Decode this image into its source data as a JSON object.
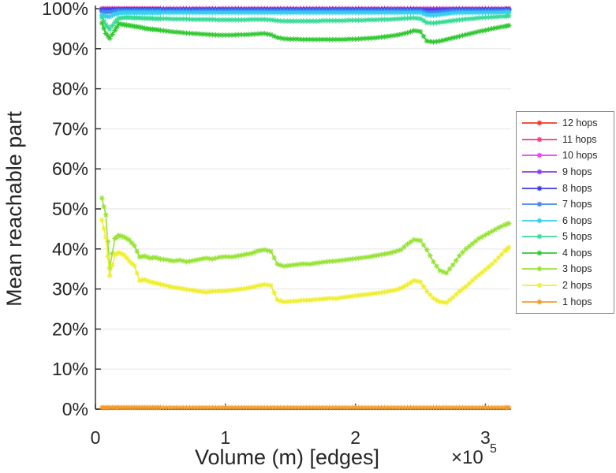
{
  "figure": {
    "background": "#ffffff",
    "axis_color": "#262626",
    "grid_color": "#ececec",
    "ylabel": "Mean reachable part",
    "xlabel": "Volume (m) [edges]",
    "x_exponent_base": "×10",
    "x_exponent_power": "5",
    "x_ticks": [
      {
        "v": 0,
        "label": "0"
      },
      {
        "v": 1,
        "label": "1"
      },
      {
        "v": 2,
        "label": "2"
      },
      {
        "v": 3,
        "label": "3"
      }
    ],
    "y_ticks": [
      {
        "v": 0,
        "label": "0%"
      },
      {
        "v": 10,
        "label": "10%"
      },
      {
        "v": 20,
        "label": "20%"
      },
      {
        "v": 30,
        "label": "30%"
      },
      {
        "v": 40,
        "label": "40%"
      },
      {
        "v": 50,
        "label": "50%"
      },
      {
        "v": 60,
        "label": "60%"
      },
      {
        "v": 70,
        "label": "70%"
      },
      {
        "v": 80,
        "label": "80%"
      },
      {
        "v": 90,
        "label": "90%"
      },
      {
        "v": 100,
        "label": "100%"
      }
    ]
  },
  "chart_data": {
    "type": "line",
    "title": "",
    "xlabel": "Volume (m) [edges]",
    "ylabel": "Mean reachable part",
    "x_unit": "edges, values in units of 1e5 (axis shows ×10^5)",
    "xlim": [
      0,
      3.2
    ],
    "ylim_percent": [
      0,
      100
    ],
    "grid": "horizontal gridlines only",
    "legend_position": "outside right",
    "marker": "asterisk",
    "x": [
      0.05,
      0.08,
      0.11,
      0.15,
      0.18,
      0.22,
      0.26,
      0.3,
      0.34,
      0.38,
      0.42,
      0.46,
      0.5,
      0.55,
      0.6,
      0.65,
      0.7,
      0.75,
      0.8,
      0.85,
      0.9,
      0.95,
      1.0,
      1.05,
      1.1,
      1.15,
      1.2,
      1.25,
      1.3,
      1.35,
      1.4,
      1.45,
      1.5,
      1.55,
      1.6,
      1.65,
      1.7,
      1.75,
      1.8,
      1.85,
      1.9,
      1.95,
      2.0,
      2.05,
      2.1,
      2.15,
      2.2,
      2.25,
      2.3,
      2.35,
      2.4,
      2.45,
      2.5,
      2.55,
      2.6,
      2.65,
      2.7,
      2.75,
      2.8,
      2.85,
      2.9,
      2.95,
      3.0,
      3.05,
      3.1,
      3.15,
      3.18
    ],
    "series": [
      {
        "name": "12 hops",
        "color": "#ee3a24",
        "values": [
          100,
          100,
          100,
          100,
          100,
          100,
          100,
          100,
          100,
          100,
          100,
          100,
          100,
          100,
          100,
          100,
          100,
          100,
          100,
          100,
          100,
          100,
          100,
          100,
          100,
          100,
          100,
          100,
          100,
          100,
          100,
          100,
          100,
          100,
          100,
          100,
          100,
          100,
          100,
          100,
          100,
          100,
          100,
          100,
          100,
          100,
          100,
          100,
          100,
          100,
          100,
          100,
          100,
          100,
          100,
          100,
          100,
          100,
          100,
          100,
          100,
          100,
          100,
          100,
          100,
          100,
          100
        ]
      },
      {
        "name": "11 hops",
        "color": "#ef3a87",
        "values": [
          99.95,
          99.95,
          99.95,
          99.95,
          99.95,
          99.95,
          99.95,
          99.95,
          99.95,
          99.95,
          99.95,
          99.95,
          99.95,
          99.95,
          99.95,
          99.95,
          99.95,
          99.95,
          99.95,
          99.95,
          99.95,
          99.95,
          99.95,
          99.95,
          99.95,
          99.95,
          99.95,
          99.95,
          99.95,
          99.95,
          99.95,
          99.95,
          99.95,
          99.95,
          99.95,
          99.95,
          99.95,
          99.95,
          99.95,
          99.95,
          99.95,
          99.95,
          99.95,
          99.95,
          99.95,
          99.95,
          99.95,
          99.95,
          99.95,
          99.95,
          99.95,
          99.95,
          99.95,
          99.95,
          99.95,
          99.95,
          99.95,
          99.95,
          99.95,
          99.95,
          99.95,
          99.95,
          99.95,
          99.95,
          99.95,
          99.95,
          99.95
        ]
      },
      {
        "name": "10 hops",
        "color": "#ed3bed",
        "values": [
          99.9,
          99.9,
          99.9,
          99.9,
          99.9,
          99.9,
          99.9,
          99.9,
          99.9,
          99.9,
          99.9,
          99.9,
          99.9,
          99.9,
          99.9,
          99.9,
          99.9,
          99.9,
          99.9,
          99.9,
          99.9,
          99.9,
          99.9,
          99.9,
          99.9,
          99.9,
          99.9,
          99.9,
          99.9,
          99.9,
          99.9,
          99.9,
          99.9,
          99.9,
          99.9,
          99.9,
          99.9,
          99.9,
          99.9,
          99.9,
          99.9,
          99.9,
          99.9,
          99.9,
          99.9,
          99.9,
          99.9,
          99.9,
          99.9,
          99.9,
          99.9,
          99.9,
          99.9,
          99.9,
          99.9,
          99.9,
          99.9,
          99.9,
          99.9,
          99.9,
          99.9,
          99.9,
          99.9,
          99.9,
          99.9,
          99.9,
          99.9
        ]
      },
      {
        "name": "9 hops",
        "color": "#8738ec",
        "values": [
          99.85,
          99.85,
          99.85,
          99.85,
          99.85,
          99.85,
          99.85,
          99.85,
          99.85,
          99.85,
          99.85,
          99.85,
          99.85,
          99.85,
          99.85,
          99.85,
          99.85,
          99.85,
          99.85,
          99.85,
          99.85,
          99.85,
          99.85,
          99.85,
          99.85,
          99.85,
          99.85,
          99.85,
          99.85,
          99.85,
          99.85,
          99.85,
          99.85,
          99.85,
          99.85,
          99.85,
          99.85,
          99.85,
          99.85,
          99.85,
          99.85,
          99.85,
          99.85,
          99.85,
          99.85,
          99.85,
          99.85,
          99.85,
          99.85,
          99.85,
          99.85,
          99.85,
          99.85,
          99.85,
          99.85,
          99.85,
          99.85,
          99.85,
          99.85,
          99.85,
          99.85,
          99.85,
          99.85,
          99.85,
          99.85,
          99.85,
          99.85
        ]
      },
      {
        "name": "8 hops",
        "color": "#3a3aec",
        "values": [
          99.6,
          99.55,
          99.6,
          99.7,
          99.75,
          99.75,
          99.75,
          99.75,
          99.75,
          99.75,
          99.75,
          99.75,
          99.75,
          99.75,
          99.75,
          99.75,
          99.75,
          99.75,
          99.75,
          99.75,
          99.75,
          99.75,
          99.75,
          99.75,
          99.75,
          99.75,
          99.75,
          99.75,
          99.75,
          99.75,
          99.75,
          99.75,
          99.75,
          99.75,
          99.75,
          99.75,
          99.75,
          99.75,
          99.75,
          99.75,
          99.75,
          99.75,
          99.75,
          99.75,
          99.75,
          99.75,
          99.75,
          99.75,
          99.75,
          99.75,
          99.75,
          99.75,
          99.75,
          99.5,
          99.5,
          99.55,
          99.65,
          99.75,
          99.75,
          99.75,
          99.75,
          99.75,
          99.75,
          99.75,
          99.75,
          99.75,
          99.75
        ]
      },
      {
        "name": "7 hops",
        "color": "#3e86f0",
        "values": [
          99.25,
          99.15,
          99.2,
          99.4,
          99.5,
          99.5,
          99.5,
          99.5,
          99.5,
          99.5,
          99.5,
          99.5,
          99.5,
          99.5,
          99.5,
          99.5,
          99.5,
          99.5,
          99.5,
          99.5,
          99.5,
          99.5,
          99.5,
          99.5,
          99.5,
          99.5,
          99.5,
          99.5,
          99.5,
          99.5,
          99.5,
          99.5,
          99.5,
          99.5,
          99.5,
          99.5,
          99.5,
          99.5,
          99.5,
          99.5,
          99.5,
          99.5,
          99.5,
          99.5,
          99.5,
          99.5,
          99.5,
          99.5,
          99.5,
          99.5,
          99.5,
          99.5,
          99.5,
          99.1,
          99.1,
          99.2,
          99.35,
          99.5,
          99.5,
          99.5,
          99.5,
          99.5,
          99.5,
          99.5,
          99.5,
          99.5,
          99.5
        ]
      },
      {
        "name": "6 hops",
        "color": "#33cfee",
        "values": [
          98.4,
          98.1,
          98.0,
          98.6,
          98.9,
          99.0,
          99.0,
          99.0,
          99.0,
          99.0,
          99.0,
          99.0,
          99.0,
          99.0,
          99.0,
          99.0,
          99.0,
          99.0,
          99.0,
          99.0,
          99.0,
          99.0,
          99.0,
          99.0,
          99.0,
          99.0,
          99.0,
          99.0,
          99.0,
          99.0,
          99.0,
          99.0,
          99.0,
          99.0,
          99.0,
          99.0,
          99.0,
          99.0,
          99.0,
          99.0,
          99.0,
          99.0,
          99.0,
          99.0,
          99.0,
          99.0,
          99.0,
          99.0,
          99.0,
          99.0,
          99.0,
          99.0,
          99.0,
          98.4,
          98.3,
          98.5,
          98.7,
          98.9,
          99.0,
          99.0,
          99.0,
          99.0,
          99.0,
          99.0,
          99.0,
          99.1,
          99.1
        ]
      },
      {
        "name": "5 hops",
        "color": "#36db95",
        "values": [
          97.8,
          96.0,
          94.9,
          96.6,
          97.6,
          97.8,
          97.8,
          97.7,
          97.7,
          97.6,
          97.6,
          97.5,
          97.5,
          97.5,
          97.4,
          97.4,
          97.4,
          97.3,
          97.3,
          97.3,
          97.3,
          97.2,
          97.2,
          97.2,
          97.2,
          97.2,
          97.3,
          97.3,
          97.3,
          97.2,
          97.0,
          96.9,
          96.9,
          96.9,
          96.9,
          96.9,
          96.9,
          97.0,
          97.0,
          97.0,
          97.0,
          97.1,
          97.1,
          97.1,
          97.2,
          97.2,
          97.3,
          97.3,
          97.4,
          97.5,
          97.6,
          97.7,
          97.5,
          96.5,
          96.4,
          96.6,
          96.8,
          97.0,
          97.2,
          97.4,
          97.5,
          97.7,
          97.8,
          97.9,
          98.0,
          98.1,
          98.2
        ]
      },
      {
        "name": "4 hops",
        "color": "#2fc92f",
        "values": [
          96.4,
          93.8,
          92.6,
          94.6,
          96.2,
          96.0,
          95.8,
          95.6,
          95.4,
          95.1,
          94.9,
          94.8,
          94.6,
          94.4,
          94.2,
          94.1,
          93.9,
          93.8,
          93.7,
          93.6,
          93.5,
          93.4,
          93.4,
          93.4,
          93.5,
          93.5,
          93.6,
          93.7,
          93.8,
          93.5,
          92.8,
          92.5,
          92.4,
          92.4,
          92.3,
          92.3,
          92.3,
          92.3,
          92.3,
          92.3,
          92.3,
          92.4,
          92.4,
          92.5,
          92.6,
          92.7,
          92.9,
          93.1,
          93.3,
          93.6,
          94.0,
          94.5,
          94.3,
          91.9,
          91.7,
          91.9,
          92.3,
          92.7,
          93.1,
          93.5,
          93.9,
          94.3,
          94.6,
          95.0,
          95.3,
          95.6,
          95.8
        ]
      },
      {
        "name": "3 hops",
        "color": "#97e335",
        "values": [
          52.7,
          48.5,
          35.2,
          42.6,
          43.4,
          43.0,
          42.2,
          40.8,
          38.0,
          38.2,
          37.7,
          37.9,
          37.5,
          37.3,
          37.0,
          37.2,
          36.8,
          37.1,
          37.4,
          37.7,
          37.5,
          37.9,
          38.1,
          38.0,
          38.3,
          38.6,
          38.9,
          39.5,
          39.8,
          39.4,
          36.2,
          35.7,
          35.9,
          36.1,
          36.3,
          36.2,
          36.5,
          36.7,
          36.9,
          37.0,
          37.2,
          37.4,
          37.6,
          37.8,
          38.0,
          38.3,
          38.6,
          38.9,
          39.3,
          39.8,
          41.2,
          42.3,
          42.1,
          39.8,
          36.8,
          34.6,
          34.0,
          36.0,
          38.3,
          40.0,
          41.3,
          42.6,
          43.5,
          44.4,
          45.3,
          46.0,
          46.4
        ]
      },
      {
        "name": "2 hops",
        "color": "#efee33",
        "values": [
          47.2,
          43.0,
          33.3,
          38.6,
          39.1,
          38.5,
          37.0,
          35.8,
          32.1,
          32.3,
          31.8,
          31.5,
          31.2,
          30.8,
          30.4,
          30.2,
          29.9,
          29.7,
          29.4,
          29.2,
          29.4,
          29.5,
          29.5,
          29.7,
          29.9,
          30.1,
          30.4,
          30.8,
          31.1,
          30.9,
          27.3,
          26.8,
          26.9,
          27.0,
          27.2,
          27.2,
          27.4,
          27.5,
          27.7,
          27.6,
          27.9,
          28.1,
          28.3,
          28.5,
          28.7,
          28.9,
          29.1,
          29.4,
          29.7,
          30.2,
          31.1,
          32.1,
          31.8,
          29.4,
          27.7,
          26.8,
          26.6,
          27.9,
          29.4,
          30.6,
          32.1,
          33.5,
          34.8,
          36.2,
          37.8,
          39.5,
          40.4
        ]
      },
      {
        "name": "1 hops",
        "color": "#f49b2b",
        "values": [
          0.4,
          0.4,
          0.4,
          0.4,
          0.4,
          0.4,
          0.4,
          0.4,
          0.4,
          0.4,
          0.4,
          0.4,
          0.4,
          0.4,
          0.4,
          0.4,
          0.4,
          0.4,
          0.4,
          0.4,
          0.4,
          0.4,
          0.4,
          0.4,
          0.4,
          0.4,
          0.4,
          0.4,
          0.4,
          0.4,
          0.4,
          0.4,
          0.4,
          0.4,
          0.4,
          0.4,
          0.4,
          0.4,
          0.4,
          0.4,
          0.4,
          0.4,
          0.4,
          0.4,
          0.4,
          0.4,
          0.4,
          0.4,
          0.4,
          0.4,
          0.4,
          0.4,
          0.4,
          0.4,
          0.4,
          0.4,
          0.4,
          0.4,
          0.4,
          0.4,
          0.4,
          0.4,
          0.4,
          0.4,
          0.4,
          0.4,
          0.4
        ]
      }
    ]
  }
}
